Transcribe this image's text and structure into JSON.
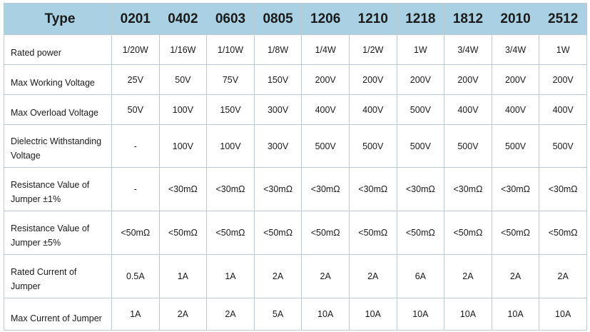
{
  "header": {
    "type_label": "Type",
    "sizes": [
      "0201",
      "0402",
      "0603",
      "0805",
      "1206",
      "1210",
      "1218",
      "1812",
      "2010",
      "2512"
    ]
  },
  "rows": [
    {
      "label": "Rated power",
      "values": [
        "1/20W",
        "1/16W",
        "1/10W",
        "1/8W",
        "1/4W",
        "1/2W",
        "1W",
        "3/4W",
        "3/4W",
        "1W"
      ]
    },
    {
      "label": "Max Working Voltage",
      "values": [
        "25V",
        "50V",
        "75V",
        "150V",
        "200V",
        "200V",
        "200V",
        "200V",
        "200V",
        "200V"
      ]
    },
    {
      "label": "Max Overload Voltage",
      "values": [
        "50V",
        "100V",
        "150V",
        "300V",
        "400V",
        "400V",
        "500V",
        "400V",
        "400V",
        "400V"
      ]
    },
    {
      "label": "Dielectric Withstanding Voltage",
      "values": [
        "-",
        "100V",
        "100V",
        "300V",
        "500V",
        "500V",
        "500V",
        "500V",
        "500V",
        "500V"
      ]
    },
    {
      "label": "Resistance Value of Jumper ±1%",
      "values": [
        "-",
        "<30mΩ",
        "<30mΩ",
        "<30mΩ",
        "<30mΩ",
        "<30mΩ",
        "<30mΩ",
        "<30mΩ",
        "<30mΩ",
        "<30mΩ"
      ]
    },
    {
      "label": "Resistance Value of Jumper ±5%",
      "values": [
        "<50mΩ",
        "<50mΩ",
        "<50mΩ",
        "<50mΩ",
        "<50mΩ",
        "<50mΩ",
        "<50mΩ",
        "<50mΩ",
        "<50mΩ",
        "<50mΩ"
      ]
    },
    {
      "label": "Rated Current of Jumper",
      "values": [
        "0.5A",
        "1A",
        "1A",
        "2A",
        "2A",
        "2A",
        "6A",
        "2A",
        "2A",
        "2A"
      ]
    },
    {
      "label": "Max Current of Jumper",
      "values": [
        "1A",
        "2A",
        "2A",
        "5A",
        "10A",
        "10A",
        "10A",
        "10A",
        "10A",
        "10A"
      ]
    }
  ],
  "colors": {
    "header_bg": "#a9d1e3",
    "border": "#bcc8d2"
  }
}
